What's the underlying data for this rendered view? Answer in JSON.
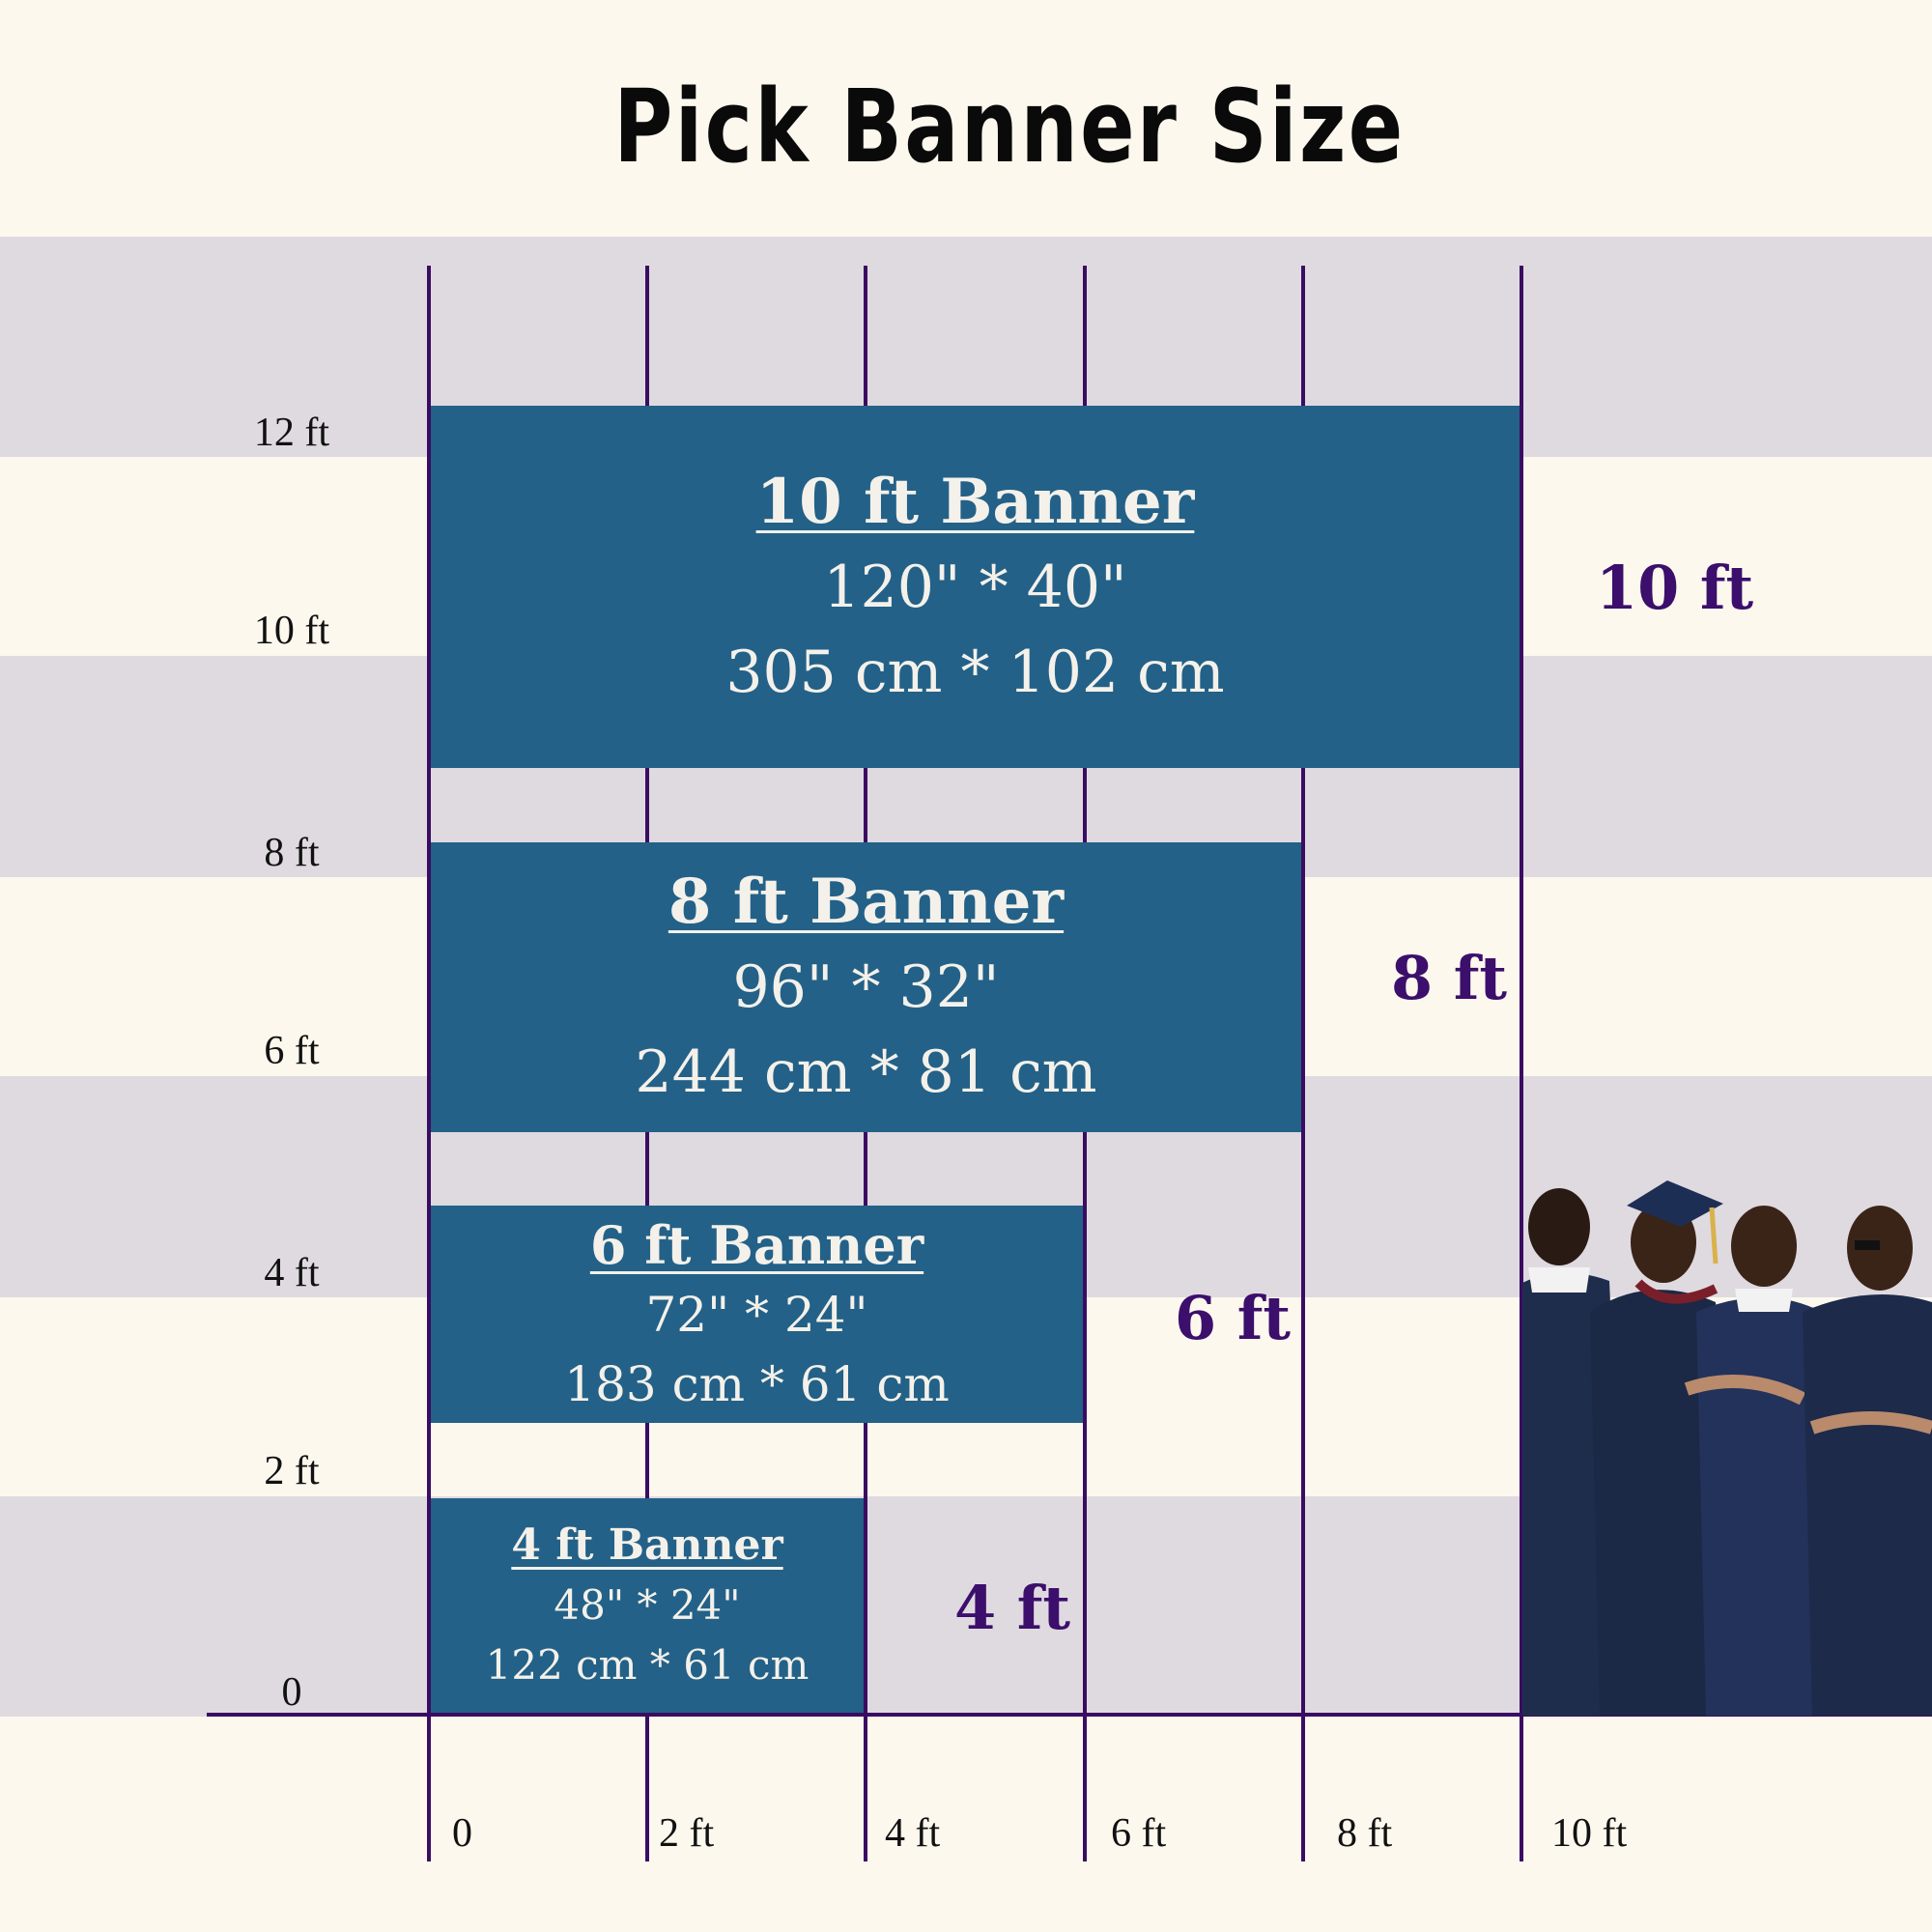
{
  "title": "Pick Banner Size",
  "y_axis": {
    "ticks": [
      "12 ft",
      "10 ft",
      "8 ft",
      "6 ft",
      "4 ft",
      "2 ft",
      "0"
    ]
  },
  "x_axis": {
    "ticks": [
      "0",
      "2 ft",
      "4 ft",
      "6 ft",
      "8 ft",
      "10 ft"
    ]
  },
  "banners": [
    {
      "name": "10 ft Banner",
      "inches": "120\" * 40\"",
      "cm": "305 cm * 102 cm",
      "width_label": "10 ft"
    },
    {
      "name": "8 ft Banner",
      "inches": "96\" * 32\"",
      "cm": "244 cm * 81 cm",
      "width_label": "8 ft"
    },
    {
      "name": "6 ft Banner",
      "inches": "72\" * 24\"",
      "cm": "183 cm * 61 cm",
      "width_label": "6 ft"
    },
    {
      "name": "4 ft Banner",
      "inches": "48\" * 24\"",
      "cm": "122 cm * 61 cm",
      "width_label": "4 ft"
    }
  ],
  "colors": {
    "background": "#fcf8ee",
    "band": "#dfdae0",
    "banner": "#236188",
    "grid_line": "#3a0c62",
    "width_label": "#3b0f6b"
  }
}
